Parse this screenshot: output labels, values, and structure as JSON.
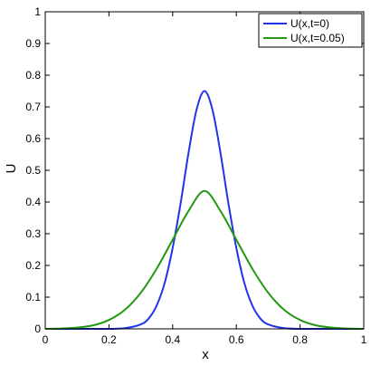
{
  "chart_data": {
    "type": "line",
    "xlabel": "x",
    "ylabel": "U",
    "xlim": [
      0,
      1
    ],
    "ylim": [
      0,
      1
    ],
    "xticks": [
      "0",
      "0.2",
      "0.4",
      "0.6",
      "0.8",
      "1"
    ],
    "yticks": [
      "0",
      "0.1",
      "0.2",
      "0.3",
      "0.4",
      "0.5",
      "0.6",
      "0.7",
      "0.8",
      "0.9",
      "1"
    ],
    "grid": false,
    "legend_position": "top-right",
    "series": [
      {
        "name": "U(x,t=0)",
        "color": "#2233ee",
        "x": [
          0,
          0.05,
          0.1,
          0.15,
          0.2,
          0.25,
          0.3,
          0.325,
          0.35,
          0.375,
          0.4,
          0.425,
          0.45,
          0.475,
          0.5,
          0.525,
          0.55,
          0.575,
          0.6,
          0.625,
          0.65,
          0.675,
          0.7,
          0.75,
          0.8,
          0.85,
          0.9,
          0.95,
          1
        ],
        "y": [
          0,
          0,
          0,
          0,
          0.0,
          0.002,
          0.014,
          0.033,
          0.074,
          0.145,
          0.255,
          0.396,
          0.556,
          0.691,
          0.75,
          0.691,
          0.556,
          0.396,
          0.255,
          0.145,
          0.074,
          0.033,
          0.014,
          0.002,
          0,
          0,
          0,
          0,
          0
        ]
      },
      {
        "name": "U(x,t=0.05)",
        "color": "#229911",
        "x": [
          0,
          0.05,
          0.1,
          0.15,
          0.2,
          0.25,
          0.3,
          0.35,
          0.4,
          0.45,
          0.5,
          0.55,
          0.6,
          0.65,
          0.7,
          0.75,
          0.8,
          0.85,
          0.9,
          0.95,
          1
        ],
        "y": [
          0.0,
          0.001,
          0.004,
          0.011,
          0.028,
          0.06,
          0.114,
          0.19,
          0.281,
          0.372,
          0.435,
          0.372,
          0.281,
          0.19,
          0.114,
          0.06,
          0.028,
          0.011,
          0.004,
          0.001,
          0.0
        ]
      }
    ]
  }
}
